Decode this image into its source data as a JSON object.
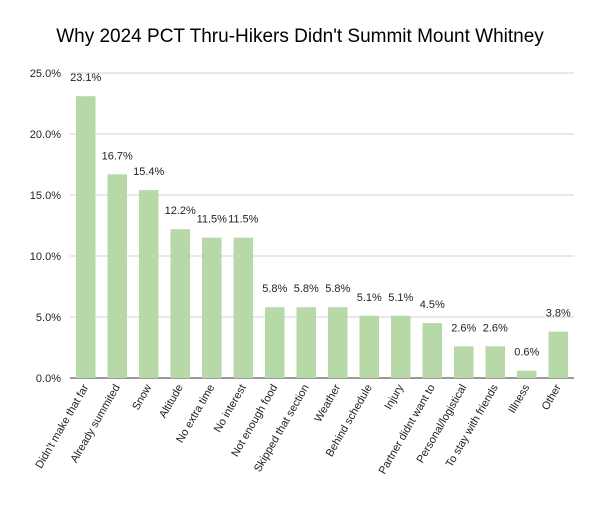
{
  "chart_data": {
    "type": "bar",
    "title": "Why 2024 PCT Thru-Hikers Didn't Summit Mount Whitney",
    "xlabel": "",
    "ylabel": "",
    "ylim": [
      0,
      25
    ],
    "yticks": [
      "0.0%",
      "5.0%",
      "10.0%",
      "15.0%",
      "20.0%",
      "25.0%"
    ],
    "grid": true,
    "bar_color": "#b7d9a8",
    "categories": [
      "Didn't make that far",
      "Already summited",
      "Snow",
      "Altitude",
      "No extra time",
      "No interest",
      "Not enough food",
      "Skipped that section",
      "Weather",
      "Behind schedule",
      "Injury",
      "Partner didnt want to",
      "Personal/logistical",
      "To stay with friends",
      "Illness",
      "Other"
    ],
    "values": [
      23.1,
      16.7,
      15.4,
      12.2,
      11.5,
      11.5,
      5.8,
      5.8,
      5.8,
      5.1,
      5.1,
      4.5,
      2.6,
      2.6,
      0.6,
      3.8
    ],
    "data_labels": [
      "23.1%",
      "16.7%",
      "15.4%",
      "12.2%",
      "11.5%",
      "11.5%",
      "5.8%",
      "5.8%",
      "5.8%",
      "5.1%",
      "5.1%",
      "4.5%",
      "2.6%",
      "2.6%",
      "0.6%",
      "3.8%"
    ]
  }
}
